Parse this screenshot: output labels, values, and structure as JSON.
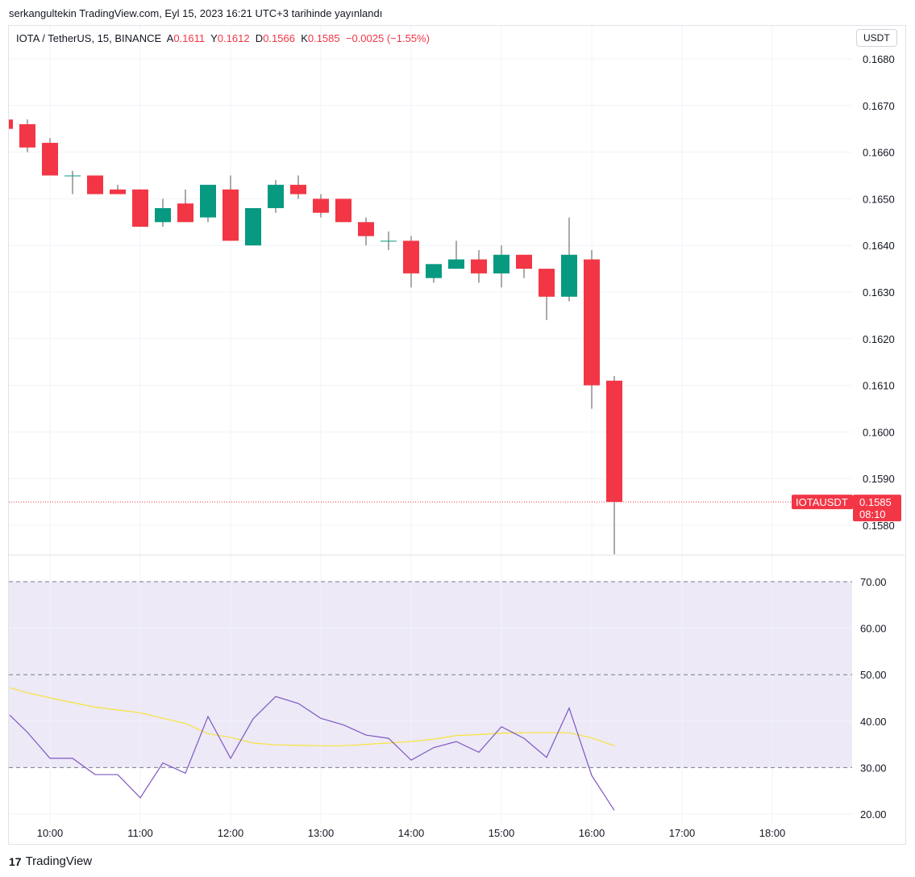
{
  "published": "serkangultekin TradingView.com, Eyl 15, 2023 16:21 UTC+3 tarihinde yayınlandı",
  "legend": {
    "symbol": "IOTA / TetherUS, 15, BINANCE",
    "o_label": "A",
    "o": "0.1611",
    "h_label": "Y",
    "h": "0.1612",
    "l_label": "D",
    "l": "0.1566",
    "c_label": "K",
    "c": "0.1585",
    "change": "−0.0025 (−1.55%)"
  },
  "currency": "USDT",
  "price_label": {
    "symbol": "IOTAUSDT",
    "price": "0.1585",
    "countdown": "08:10"
  },
  "logo": "TradingView",
  "colors": {
    "up": "#089981",
    "down": "#f23645",
    "rsi": "#7e57c2",
    "rsi_ma": "#f7e33b",
    "band": "#ede9f7"
  },
  "chart_data": [
    {
      "type": "candlestick",
      "ylim": [
        0.1575,
        0.1687
      ],
      "y_ticks": [
        "0.1680",
        "0.1670",
        "0.1660",
        "0.1650",
        "0.1640",
        "0.1630",
        "0.1620",
        "0.1610",
        "0.1600",
        "0.1590",
        "0.1580"
      ],
      "x_ticks": [
        "10:00",
        "11:00",
        "12:00",
        "13:00",
        "14:00",
        "15:00",
        "16:00",
        "17:00",
        "18:00"
      ],
      "candles": [
        [
          "09:30",
          0.1667,
          0.1667,
          0.1665,
          0.1665
        ],
        [
          "09:45",
          0.1666,
          0.1667,
          0.166,
          0.1661
        ],
        [
          "10:00",
          0.1662,
          0.1663,
          0.1655,
          0.1655
        ],
        [
          "10:15",
          0.1655,
          0.1656,
          0.1651,
          0.1655
        ],
        [
          "10:30",
          0.1655,
          0.1655,
          0.1651,
          0.1651
        ],
        [
          "10:45",
          0.1652,
          0.1653,
          0.1651,
          0.1651
        ],
        [
          "11:00",
          0.1652,
          0.1652,
          0.1644,
          0.1644
        ],
        [
          "11:15",
          0.1645,
          0.165,
          0.1644,
          0.1648
        ],
        [
          "11:30",
          0.1649,
          0.1652,
          0.1645,
          0.1645
        ],
        [
          "11:45",
          0.1646,
          0.1653,
          0.1645,
          0.1653
        ],
        [
          "12:00",
          0.1652,
          0.1655,
          0.1641,
          0.1641
        ],
        [
          "12:15",
          0.164,
          0.1648,
          0.164,
          0.1648
        ],
        [
          "12:30",
          0.1648,
          0.1654,
          0.1647,
          0.1653
        ],
        [
          "12:45",
          0.1653,
          0.1655,
          0.165,
          0.1651
        ],
        [
          "13:00",
          0.165,
          0.1651,
          0.1646,
          0.1647
        ],
        [
          "13:15",
          0.165,
          0.165,
          0.1645,
          0.1645
        ],
        [
          "13:30",
          0.1645,
          0.1646,
          0.164,
          0.1642
        ],
        [
          "13:45",
          0.1641,
          0.1643,
          0.1639,
          0.1641
        ],
        [
          "14:00",
          0.1641,
          0.1642,
          0.1631,
          0.1634
        ],
        [
          "14:15",
          0.1633,
          0.1636,
          0.1632,
          0.1636
        ],
        [
          "14:30",
          0.1635,
          0.1641,
          0.1635,
          0.1637
        ],
        [
          "14:45",
          0.1637,
          0.1639,
          0.1632,
          0.1634
        ],
        [
          "15:00",
          0.1634,
          0.164,
          0.1631,
          0.1638
        ],
        [
          "15:15",
          0.1638,
          0.1638,
          0.1633,
          0.1635
        ],
        [
          "15:30",
          0.1635,
          0.1635,
          0.1624,
          0.1629
        ],
        [
          "15:45",
          0.1629,
          0.1646,
          0.1628,
          0.1638
        ],
        [
          "16:00",
          0.1637,
          0.1639,
          0.1605,
          0.161
        ],
        [
          "16:15",
          0.1611,
          0.1612,
          0.1566,
          0.1585
        ]
      ]
    },
    {
      "type": "line",
      "ylim": [
        18,
        72
      ],
      "y_ticks": [
        "70.00",
        "60.00",
        "50.00",
        "40.00",
        "30.00",
        "20.00"
      ],
      "bands": [
        30,
        50,
        70
      ],
      "series": [
        {
          "values": [
            41.3,
            37.6,
            32,
            32,
            28.5,
            28.5,
            23.5,
            31,
            28.8,
            41,
            32,
            40.5,
            45.3,
            43.8,
            40.6,
            39.2,
            37,
            36.3,
            31.6,
            34.3,
            35.6,
            33.3,
            38.8,
            36.3,
            32.2,
            42.8,
            28.3,
            20.8
          ]
        },
        {
          "values": [
            47.2,
            46.1,
            45,
            44,
            43,
            42.4,
            41.8,
            40.6,
            39.5,
            37.3,
            36.5,
            35.3,
            34.9,
            34.8,
            34.7,
            34.7,
            35,
            35.3,
            35.6,
            36.1,
            36.9,
            37.1,
            37.4,
            37.5,
            37.5,
            37.5,
            36.4,
            34.7
          ]
        }
      ]
    }
  ]
}
